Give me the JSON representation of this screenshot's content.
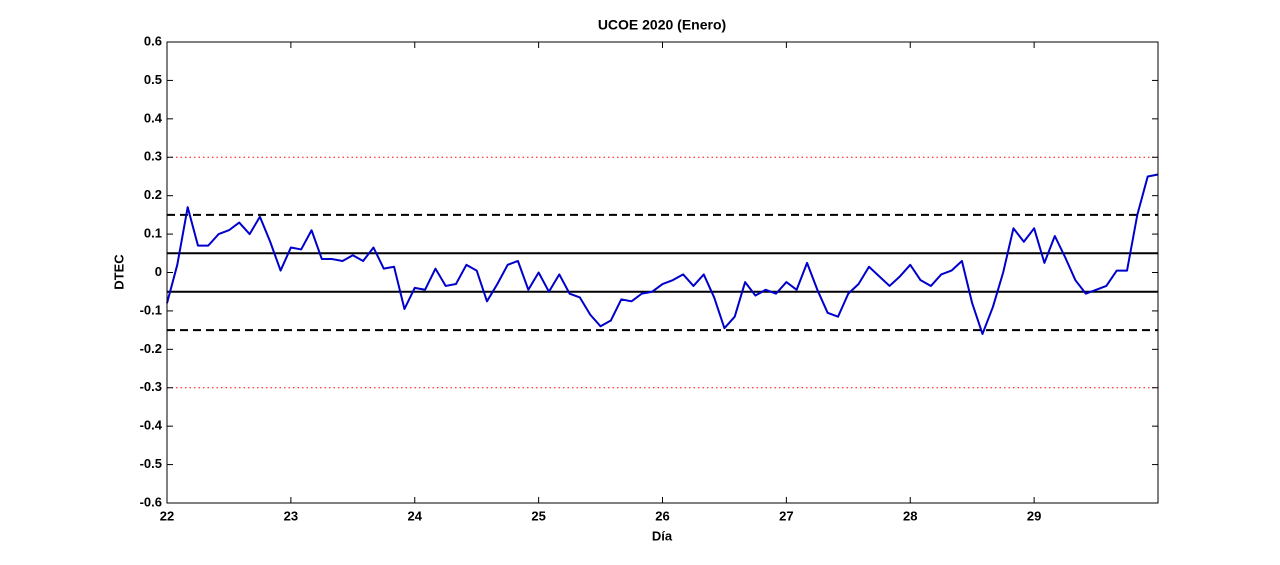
{
  "chart_data": {
    "type": "line",
    "title": "UCOE 2020 (Enero)",
    "x_label": "Día",
    "y_label": "DTEC",
    "color": "#0000cc",
    "x": [
      22,
      22.083,
      22.167,
      22.25,
      22.333,
      22.417,
      22.5,
      22.583,
      22.667,
      22.75,
      22.833,
      22.917,
      23,
      23.083,
      23.167,
      23.25,
      23.333,
      23.417,
      23.5,
      23.583,
      23.667,
      23.75,
      23.833,
      23.917,
      24,
      24.083,
      24.167,
      24.25,
      24.333,
      24.417,
      24.5,
      24.583,
      24.667,
      24.75,
      24.833,
      24.917,
      25,
      25.083,
      25.167,
      25.25,
      25.333,
      25.417,
      25.5,
      25.583,
      25.667,
      25.75,
      25.833,
      25.917,
      26,
      26.083,
      26.167,
      26.25,
      26.333,
      26.417,
      26.5,
      26.583,
      26.667,
      26.75,
      26.833,
      26.917,
      27,
      27.083,
      27.167,
      27.25,
      27.333,
      27.417,
      27.5,
      27.583,
      27.667,
      27.75,
      27.833,
      27.917,
      28,
      28.083,
      28.167,
      28.25,
      28.333,
      28.417,
      28.5,
      28.583,
      28.667,
      28.75,
      28.833,
      28.917,
      29,
      29.083,
      29.167,
      29.25,
      29.333,
      29.417,
      29.5,
      29.583,
      29.667,
      29.75,
      29.833,
      29.917,
      30
    ],
    "values": [
      -0.08,
      0.02,
      0.17,
      0.07,
      0.07,
      0.1,
      0.11,
      0.13,
      0.1,
      0.145,
      0.08,
      0.005,
      0.065,
      0.06,
      0.11,
      0.035,
      0.035,
      0.03,
      0.045,
      0.03,
      0.065,
      0.01,
      0.015,
      -0.095,
      -0.04,
      -0.045,
      0.01,
      -0.035,
      -0.03,
      0.02,
      0.005,
      -0.075,
      -0.03,
      0.02,
      0.03,
      -0.045,
      0.0,
      -0.05,
      -0.005,
      -0.055,
      -0.065,
      -0.11,
      -0.14,
      -0.125,
      -0.07,
      -0.075,
      -0.055,
      -0.05,
      -0.03,
      -0.02,
      -0.005,
      -0.035,
      -0.005,
      -0.065,
      -0.145,
      -0.115,
      -0.025,
      -0.06,
      -0.045,
      -0.055,
      -0.025,
      -0.045,
      0.025,
      -0.045,
      -0.105,
      -0.115,
      -0.055,
      -0.03,
      0.015,
      -0.01,
      -0.035,
      -0.01,
      0.02,
      -0.02,
      -0.035,
      -0.005,
      0.005,
      0.03,
      -0.08,
      -0.16,
      -0.09,
      0.0,
      0.115,
      0.08,
      0.115,
      0.025,
      0.095,
      0.04,
      -0.02,
      -0.055,
      -0.045,
      -0.035,
      0.005,
      0.005,
      0.15,
      0.25,
      0.255
    ],
    "reference_lines": [
      {
        "value": 0.3,
        "color": "#ff0000",
        "style": "dotted"
      },
      {
        "value": -0.3,
        "color": "#ff0000",
        "style": "dotted"
      },
      {
        "value": 0.15,
        "color": "#000000",
        "style": "dashed"
      },
      {
        "value": -0.15,
        "color": "#000000",
        "style": "dashed"
      },
      {
        "value": 0.05,
        "color": "#000000",
        "style": "solid"
      },
      {
        "value": -0.05,
        "color": "#000000",
        "style": "solid"
      }
    ],
    "xlim": [
      22,
      30
    ],
    "xticks": [
      22,
      23,
      24,
      25,
      26,
      27,
      28,
      29
    ],
    "ylim": [
      -0.6,
      0.6
    ],
    "yticks": [
      -0.6,
      -0.5,
      -0.4,
      -0.3,
      -0.2,
      -0.1,
      0,
      0.1,
      0.2,
      0.3,
      0.4,
      0.5,
      0.6
    ],
    "grid": false
  }
}
